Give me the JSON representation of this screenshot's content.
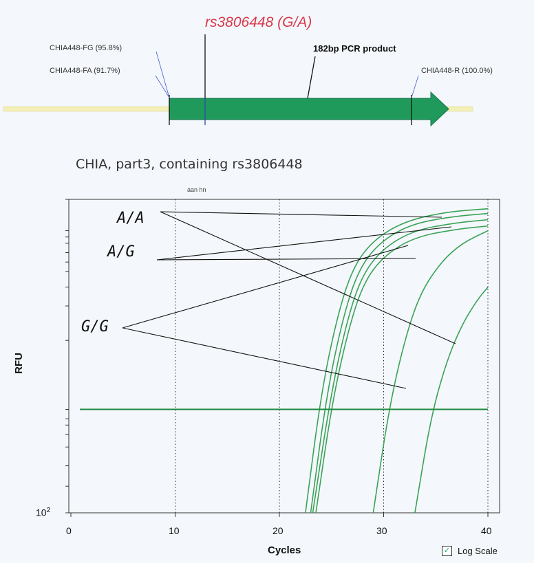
{
  "map": {
    "snp_label": "rs3806448 (G/A)",
    "product_label": "182bp PCR product",
    "primer_fg": "CHIA448-FG (95.8%)",
    "primer_fa": "CHIA448-FA (91.7%)",
    "primer_r": "CHIA448-R (100.0%)",
    "colors": {
      "arrow": "#1f9a5b",
      "backbone": "#f3efb5",
      "snp": "#d9394a"
    }
  },
  "subtitle": "CHIA, part3, containing rs3806448",
  "small_note": "aan hn",
  "chart_data": {
    "type": "line",
    "xlabel": "Cycles",
    "ylabel": "RFU",
    "xlim": [
      0,
      41
    ],
    "x_ticks": [
      "0",
      "10",
      "20",
      "30",
      "40"
    ],
    "y_tick_base": "10",
    "y_tick_exp": "2",
    "y_scale": "log",
    "grid": "vertical dotted at 10, 20, 30, 40",
    "threshold_level": 0.33,
    "genotype_labels": [
      "A/A",
      "A/G",
      "G/G"
    ],
    "series": [
      {
        "values": [
          [
            22.5,
            0.0
          ],
          [
            24.0,
            0.38
          ],
          [
            25.5,
            0.62
          ],
          [
            27.0,
            0.78
          ],
          [
            29.0,
            0.87
          ],
          [
            32.0,
            0.93
          ],
          [
            36.0,
            0.96
          ],
          [
            40.0,
            0.97
          ]
        ]
      },
      {
        "values": [
          [
            23.0,
            0.0
          ],
          [
            24.5,
            0.37
          ],
          [
            26.0,
            0.61
          ],
          [
            27.5,
            0.77
          ],
          [
            29.5,
            0.86
          ],
          [
            32.5,
            0.92
          ],
          [
            36.5,
            0.945
          ],
          [
            40.0,
            0.955
          ]
        ]
      },
      {
        "values": [
          [
            23.2,
            0.0
          ],
          [
            24.8,
            0.35
          ],
          [
            26.3,
            0.59
          ],
          [
            27.8,
            0.75
          ],
          [
            29.8,
            0.84
          ],
          [
            32.8,
            0.9
          ],
          [
            36.8,
            0.925
          ],
          [
            40.0,
            0.935
          ]
        ]
      },
      {
        "values": [
          [
            23.5,
            0.0
          ],
          [
            25.0,
            0.34
          ],
          [
            26.5,
            0.57
          ],
          [
            28.0,
            0.73
          ],
          [
            30.0,
            0.82
          ],
          [
            33.0,
            0.88
          ],
          [
            37.0,
            0.905
          ],
          [
            40.0,
            0.915
          ]
        ]
      },
      {
        "values": [
          [
            29.0,
            0.0
          ],
          [
            30.5,
            0.33
          ],
          [
            32.0,
            0.55
          ],
          [
            33.5,
            0.7
          ],
          [
            35.5,
            0.8
          ],
          [
            37.5,
            0.86
          ],
          [
            40.0,
            0.9
          ]
        ]
      },
      {
        "values": [
          [
            33.0,
            0.0
          ],
          [
            34.5,
            0.3
          ],
          [
            36.0,
            0.48
          ],
          [
            37.5,
            0.6
          ],
          [
            39.0,
            0.68
          ],
          [
            40.0,
            0.72
          ]
        ]
      }
    ]
  },
  "log_scale": {
    "label": "Log Scale",
    "checked": true
  }
}
